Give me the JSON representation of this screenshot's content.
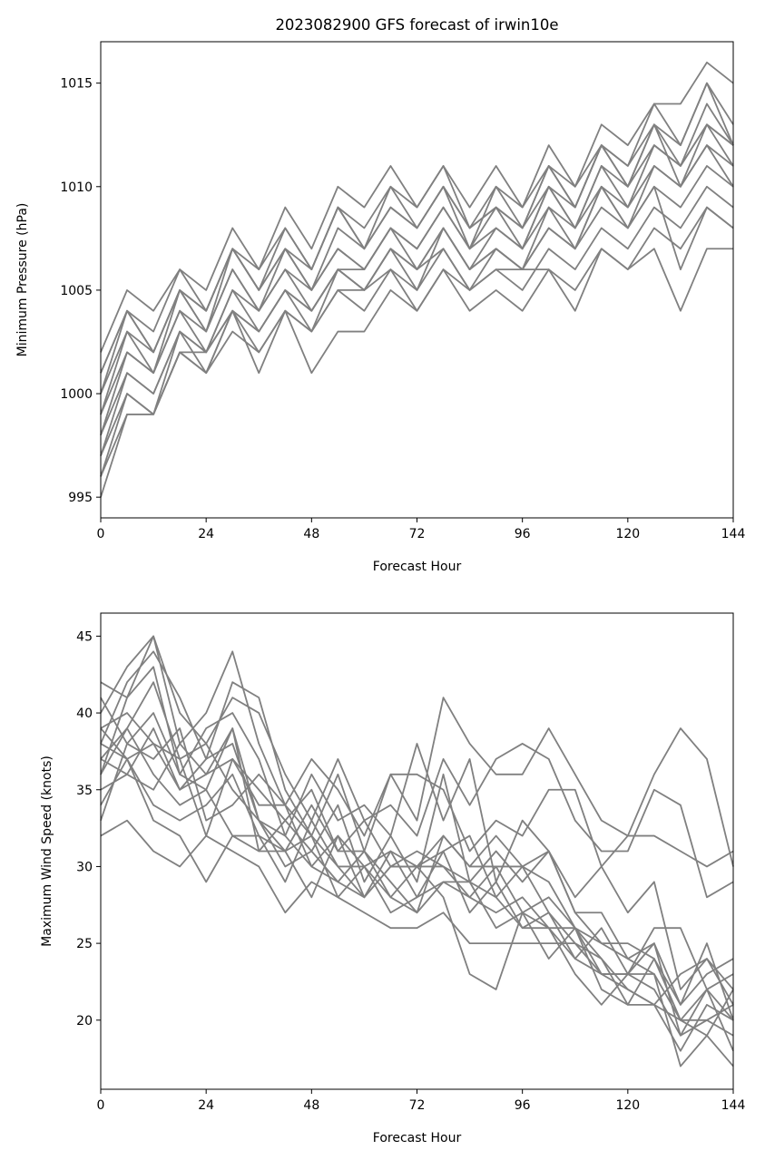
{
  "chart_data": [
    {
      "type": "line",
      "title": "2023082900 GFS forecast of irwin10e",
      "xlabel": "Forecast Hour",
      "ylabel": "Minimum Pressure (hPa)",
      "xlim": [
        0,
        144
      ],
      "ylim": [
        994,
        1017
      ],
      "xticks": [
        0,
        24,
        48,
        72,
        96,
        120,
        144
      ],
      "yticks": [
        995,
        1000,
        1005,
        1010,
        1015
      ],
      "grid": false,
      "line_color": "#808080",
      "x": [
        0,
        6,
        12,
        18,
        24,
        30,
        36,
        42,
        48,
        54,
        60,
        66,
        72,
        78,
        84,
        90,
        96,
        102,
        108,
        114,
        120,
        126,
        132,
        138,
        144
      ],
      "series": [
        {
          "values": [
            1002,
            1005,
            1004,
            1006,
            1005,
            1008,
            1006,
            1009,
            1007,
            1010,
            1009,
            1011,
            1009,
            1011,
            1009,
            1011,
            1009,
            1012,
            1010,
            1013,
            1012,
            1014,
            1014,
            1016,
            1015
          ]
        },
        {
          "values": [
            1001,
            1004,
            1003,
            1006,
            1004,
            1007,
            1006,
            1008,
            1006,
            1009,
            1008,
            1010,
            1009,
            1011,
            1008,
            1010,
            1009,
            1011,
            1010,
            1012,
            1011,
            1014,
            1012,
            1015,
            1013
          ]
        },
        {
          "values": [
            1000,
            1004,
            1002,
            1005,
            1004,
            1007,
            1005,
            1007,
            1006,
            1009,
            1007,
            1009,
            1008,
            1010,
            1008,
            1009,
            1008,
            1011,
            1009,
            1012,
            1010,
            1013,
            1012,
            1015,
            1012
          ]
        },
        {
          "values": [
            1000,
            1003,
            1002,
            1005,
            1003,
            1007,
            1005,
            1007,
            1005,
            1008,
            1007,
            1009,
            1008,
            1010,
            1008,
            1009,
            1008,
            1010,
            1009,
            1012,
            1010,
            1013,
            1011,
            1014,
            1012
          ]
        },
        {
          "values": [
            999,
            1003,
            1001,
            1005,
            1003,
            1006,
            1004,
            1007,
            1005,
            1007,
            1006,
            1008,
            1007,
            1009,
            1007,
            1009,
            1007,
            1010,
            1008,
            1011,
            1010,
            1012,
            1011,
            1013,
            1012
          ]
        },
        {
          "values": [
            999,
            1002,
            1001,
            1004,
            1003,
            1006,
            1004,
            1006,
            1005,
            1007,
            1006,
            1008,
            1007,
            1009,
            1007,
            1008,
            1007,
            1010,
            1008,
            1011,
            1009,
            1012,
            1011,
            1013,
            1011
          ]
        },
        {
          "values": [
            998,
            1002,
            1001,
            1004,
            1002,
            1005,
            1004,
            1006,
            1004,
            1006,
            1006,
            1008,
            1006,
            1008,
            1006,
            1008,
            1007,
            1009,
            1008,
            1010,
            1009,
            1011,
            1010,
            1012,
            1011
          ]
        },
        {
          "values": [
            998,
            1001,
            1000,
            1003,
            1002,
            1005,
            1003,
            1005,
            1004,
            1006,
            1005,
            1007,
            1006,
            1008,
            1006,
            1007,
            1006,
            1009,
            1007,
            1010,
            1008,
            1011,
            1010,
            1012,
            1010
          ]
        },
        {
          "values": [
            997,
            1001,
            1000,
            1003,
            1002,
            1004,
            1003,
            1005,
            1004,
            1006,
            1005,
            1007,
            1006,
            1007,
            1005,
            1007,
            1006,
            1008,
            1007,
            1009,
            1008,
            1010,
            1009,
            1011,
            1010
          ]
        },
        {
          "values": [
            997,
            1000,
            999,
            1002,
            1001,
            1004,
            1002,
            1004,
            1003,
            1005,
            1005,
            1006,
            1005,
            1007,
            1005,
            1006,
            1005,
            1007,
            1006,
            1008,
            1007,
            1009,
            1008,
            1010,
            1009
          ]
        },
        {
          "values": [
            996,
            999,
            999,
            1002,
            1001,
            1003,
            1002,
            1004,
            1001,
            1003,
            1003,
            1005,
            1004,
            1006,
            1004,
            1005,
            1004,
            1006,
            1005,
            1007,
            1006,
            1008,
            1007,
            1009,
            1008
          ]
        },
        {
          "values": [
            995,
            999,
            999,
            1002,
            1002,
            1004,
            1001,
            1004,
            1003,
            1005,
            1004,
            1006,
            1004,
            1006,
            1005,
            1006,
            1006,
            1006,
            1004,
            1007,
            1006,
            1007,
            1004,
            1007,
            1007
          ]
        },
        {
          "values": [
            996,
            1000,
            999,
            1003,
            1001,
            1004,
            1003,
            1005,
            1003,
            1006,
            1005,
            1007,
            1005,
            1008,
            1006,
            1007,
            1006,
            1008,
            1007,
            1010,
            1008,
            1010,
            1006,
            1009,
            1008
          ]
        },
        {
          "values": [
            1001,
            1004,
            1002,
            1005,
            1004,
            1007,
            1005,
            1008,
            1006,
            1009,
            1007,
            1010,
            1008,
            1010,
            1007,
            1010,
            1008,
            1011,
            1009,
            1012,
            1011,
            1013,
            1010,
            1013,
            1012
          ]
        }
      ]
    },
    {
      "type": "line",
      "title": "",
      "xlabel": "Forecast Hour",
      "ylabel": "Maximum Wind Speed (knots)",
      "xlim": [
        0,
        144
      ],
      "ylim": [
        15.5,
        46.5
      ],
      "xticks": [
        0,
        24,
        48,
        72,
        96,
        120,
        144
      ],
      "yticks": [
        20,
        25,
        30,
        35,
        40,
        45
      ],
      "grid": false,
      "line_color": "#808080",
      "x": [
        0,
        6,
        12,
        18,
        24,
        30,
        36,
        42,
        48,
        54,
        60,
        66,
        72,
        78,
        84,
        90,
        96,
        102,
        108,
        114,
        120,
        126,
        132,
        138,
        144
      ],
      "series": [
        {
          "values": [
            42,
            41,
            45,
            38,
            40,
            44,
            38,
            34,
            37,
            35,
            32,
            36,
            33,
            41,
            38,
            36,
            36,
            39,
            36,
            33,
            32,
            36,
            39,
            37,
            30
          ]
        },
        {
          "values": [
            40,
            43,
            45,
            40,
            38,
            41,
            40,
            36,
            33,
            37,
            33,
            34,
            32,
            37,
            34,
            37,
            38,
            37,
            33,
            31,
            31,
            35,
            34,
            28,
            29
          ]
        },
        {
          "values": [
            38,
            42,
            44,
            41,
            37,
            42,
            41,
            35,
            32,
            36,
            31,
            36,
            36,
            35,
            31,
            33,
            32,
            35,
            35,
            30,
            32,
            32,
            31,
            30,
            31
          ]
        },
        {
          "values": [
            36,
            41,
            43,
            36,
            39,
            40,
            37,
            32,
            36,
            33,
            34,
            32,
            38,
            33,
            37,
            29,
            33,
            31,
            28,
            30,
            27,
            29,
            22,
            24,
            21
          ]
        },
        {
          "values": [
            34,
            37,
            38,
            35,
            36,
            39,
            33,
            30,
            31,
            34,
            29,
            32,
            29,
            36,
            29,
            31,
            29,
            31,
            27,
            25,
            25,
            24,
            21,
            25,
            20
          ]
        },
        {
          "values": [
            33,
            38,
            40,
            36,
            35,
            39,
            31,
            31,
            28,
            32,
            30,
            28,
            30,
            31,
            32,
            28,
            30,
            27,
            24,
            26,
            23,
            25,
            19,
            20,
            19
          ]
        },
        {
          "values": [
            37,
            39,
            42,
            37,
            32,
            37,
            35,
            33,
            35,
            31,
            33,
            30,
            30,
            32,
            30,
            32,
            30,
            29,
            26,
            24,
            21,
            24,
            20,
            19,
            22
          ]
        },
        {
          "values": [
            39,
            37,
            34,
            33,
            34,
            36,
            32,
            29,
            33,
            30,
            28,
            30,
            31,
            30,
            28,
            27,
            28,
            26,
            24,
            23,
            22,
            21,
            18,
            21,
            20
          ]
        },
        {
          "values": [
            35,
            36,
            39,
            35,
            37,
            38,
            33,
            32,
            30,
            29,
            31,
            29,
            27,
            32,
            30,
            30,
            27,
            28,
            26,
            25,
            24,
            23,
            20,
            22,
            18
          ]
        },
        {
          "values": [
            32,
            33,
            31,
            30,
            32,
            31,
            30,
            27,
            29,
            28,
            27,
            26,
            26,
            27,
            25,
            25,
            25,
            25,
            25,
            24,
            22,
            21,
            20,
            20,
            21
          ]
        },
        {
          "values": [
            41,
            38,
            37,
            39,
            33,
            34,
            36,
            34,
            30,
            32,
            28,
            31,
            28,
            31,
            27,
            29,
            26,
            26,
            26,
            23,
            23,
            23,
            17,
            19,
            17
          ]
        },
        {
          "values": [
            36,
            39,
            36,
            34,
            35,
            32,
            32,
            31,
            32,
            28,
            30,
            27,
            28,
            29,
            29,
            28,
            26,
            27,
            25,
            23,
            23,
            26,
            26,
            22,
            23
          ]
        },
        {
          "values": [
            38,
            37,
            33,
            32,
            29,
            32,
            31,
            33,
            31,
            29,
            28,
            30,
            30,
            28,
            23,
            22,
            27,
            24,
            26,
            22,
            21,
            21,
            23,
            24,
            22
          ]
        },
        {
          "values": [
            37,
            36,
            35,
            38,
            36,
            37,
            34,
            34,
            32,
            30,
            30,
            31,
            30,
            30,
            29,
            26,
            27,
            26,
            23,
            21,
            23,
            22,
            19,
            22,
            20
          ]
        },
        {
          "values": [
            39,
            40,
            38,
            37,
            38,
            35,
            33,
            31,
            34,
            31,
            31,
            28,
            27,
            29,
            28,
            30,
            30,
            31,
            27,
            27,
            24,
            25,
            21,
            23,
            24
          ]
        }
      ]
    }
  ]
}
